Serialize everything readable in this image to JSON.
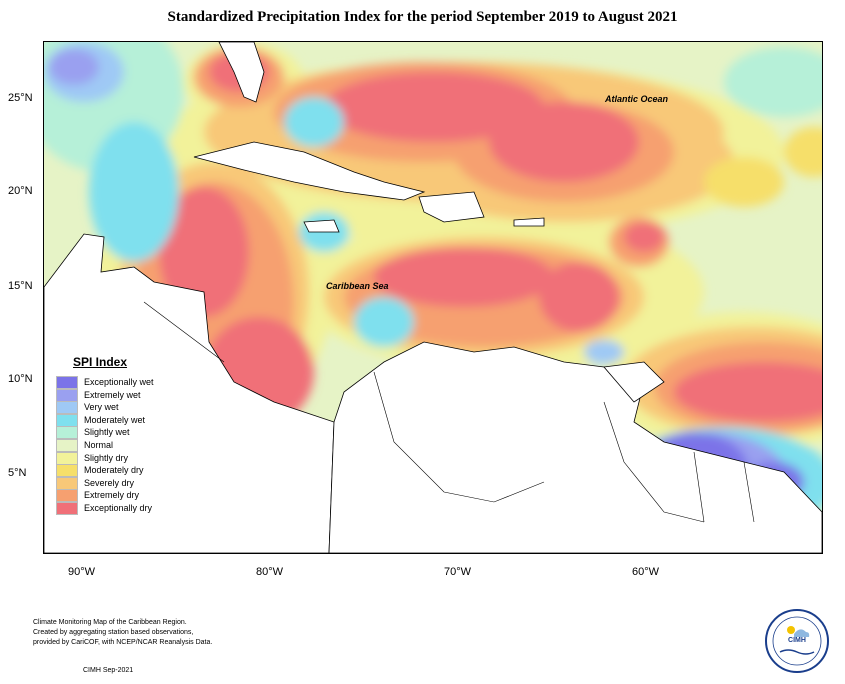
{
  "title": "Standardized Precipitation Index for the period September 2019 to August 2021",
  "axes": {
    "y_labels": [
      "25°N",
      "20°N",
      "15°N",
      "10°N",
      "5°N"
    ],
    "x_labels": [
      "90°W",
      "80°W",
      "70°W",
      "60°W"
    ]
  },
  "ocean_labels": {
    "atlantic": "Atlantic Ocean",
    "caribbean": "Caribbean Sea"
  },
  "legend": {
    "title": "SPI Index",
    "items": [
      {
        "label": "Exceptionally wet",
        "color": "#7b73e8"
      },
      {
        "label": "Extremely wet",
        "color": "#9aa0f0"
      },
      {
        "label": "Very wet",
        "color": "#9fc9f5"
      },
      {
        "label": "Moderately wet",
        "color": "#7fe0ee"
      },
      {
        "label": "Slightly wet",
        "color": "#b6f0d8"
      },
      {
        "label": "Normal",
        "color": "#e6f3c6"
      },
      {
        "label": "Slightly dry",
        "color": "#f2f29a"
      },
      {
        "label": "Moderately dry",
        "color": "#f6df6a"
      },
      {
        "label": "Severely dry",
        "color": "#f8c878"
      },
      {
        "label": "Extremely dry",
        "color": "#f6a070"
      },
      {
        "label": "Exceptionally dry",
        "color": "#f07078"
      }
    ]
  },
  "footnote": {
    "line1": "Climate Monitoring Map of the Caribbean Region.",
    "line2": "Created by aggregating station based observations,",
    "line3": "provided by CariCOF, with NCEP/NCAR Reanalysis Data."
  },
  "credit": "CIMH Sep-2021",
  "logo_text": "CIMH"
}
